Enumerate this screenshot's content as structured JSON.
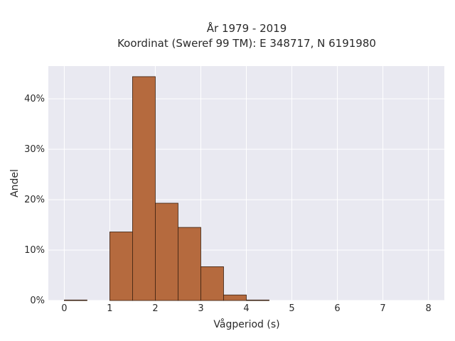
{
  "chart_data": {
    "type": "bar",
    "title": "År 1979 - 2019",
    "subtitle": "Koordinat (Sweref 99 TM): E 348717, N 6191980",
    "xlabel": "Vågperiod (s)",
    "ylabel": "Andel",
    "bin_edges": [
      0,
      0.5,
      1,
      1.5,
      2,
      2.5,
      3,
      3.5,
      4,
      4.5
    ],
    "values": [
      0.1,
      0.0,
      13.6,
      44.4,
      19.3,
      14.5,
      6.7,
      1.1,
      0.1
    ],
    "xlim": [
      -0.35,
      8.35
    ],
    "ylim": [
      0,
      46.5
    ],
    "xticks": [
      0,
      1,
      2,
      3,
      4,
      5,
      6,
      7,
      8
    ],
    "xtick_labels": [
      "0",
      "1",
      "2",
      "3",
      "4",
      "5",
      "6",
      "7",
      "8"
    ],
    "yticks": [
      0,
      10,
      20,
      30,
      40
    ],
    "ytick_labels": [
      "0%",
      "10%",
      "20%",
      "30%",
      "40%"
    ],
    "grid": true,
    "bar_color": "#b56a3e",
    "bar_edge_color": "#3a2010",
    "plot_background": "#e9e9f1"
  }
}
